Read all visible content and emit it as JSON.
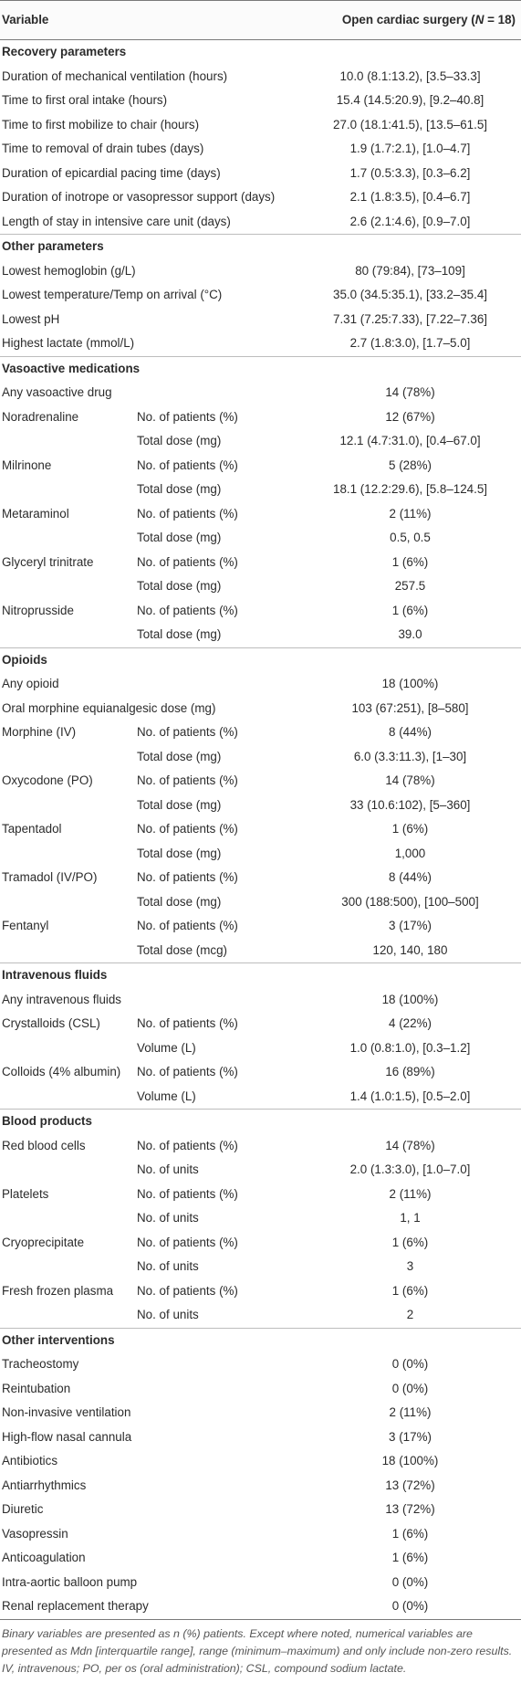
{
  "header": {
    "col_variable": "Variable",
    "col_group": "Open cardiac surgery (N = 18)"
  },
  "sections": [
    {
      "title": "Recovery parameters",
      "rows": [
        {
          "var": "Duration of mechanical ventilation (hours)",
          "sub": "",
          "val": "10.0 (8.1:13.2), [3.5–33.3]"
        },
        {
          "var": "Time to first oral intake (hours)",
          "sub": "",
          "val": "15.4 (14.5:20.9), [9.2–40.8]"
        },
        {
          "var": "Time to first mobilize to chair (hours)",
          "sub": "",
          "val": "27.0 (18.1:41.5), [13.5–61.5]"
        },
        {
          "var": "Time to removal of drain tubes (days)",
          "sub": "",
          "val": "1.9 (1.7:2.1), [1.0–4.7]"
        },
        {
          "var": "Duration of epicardial pacing time (days)",
          "sub": "",
          "val": "1.7 (0.5:3.3), [0.3–6.2]"
        },
        {
          "var": "Duration of inotrope or vasopressor support (days)",
          "sub": "",
          "val": "2.1 (1.8:3.5), [0.4–6.7]"
        },
        {
          "var": "Length of stay in intensive care unit (days)",
          "sub": "",
          "val": "2.6 (2.1:4.6), [0.9–7.0]"
        }
      ]
    },
    {
      "title": "Other parameters",
      "rows": [
        {
          "var": "Lowest hemoglobin (g/L)",
          "sub": "",
          "val": "80 (79:84), [73–109]"
        },
        {
          "var": "Lowest temperature/Temp on arrival (°C)",
          "sub": "",
          "val": "35.0 (34.5:35.1), [33.2–35.4]"
        },
        {
          "var": "Lowest pH",
          "sub": "",
          "val": "7.31 (7.25:7.33), [7.22–7.36]"
        },
        {
          "var": "Highest lactate (mmol/L)",
          "sub": "",
          "val": "2.7 (1.8:3.0), [1.7–5.0]"
        }
      ]
    },
    {
      "title": "Vasoactive medications",
      "rows": [
        {
          "var": "Any vasoactive drug",
          "sub": "",
          "val": "14 (78%)"
        },
        {
          "var": "Noradrenaline",
          "sub": "No. of patients (%)",
          "val": "12 (67%)"
        },
        {
          "var": "",
          "sub": "Total dose (mg)",
          "val": "12.1 (4.7:31.0), [0.4–67.0]"
        },
        {
          "var": "Milrinone",
          "sub": "No. of patients (%)",
          "val": "5 (28%)"
        },
        {
          "var": "",
          "sub": "Total dose (mg)",
          "val": "18.1 (12.2:29.6), [5.8–124.5]"
        },
        {
          "var": "Metaraminol",
          "sub": "No. of patients (%)",
          "val": "2 (11%)"
        },
        {
          "var": "",
          "sub": "Total dose (mg)",
          "val": "0.5, 0.5"
        },
        {
          "var": "Glyceryl trinitrate",
          "sub": "No. of patients (%)",
          "val": "1 (6%)"
        },
        {
          "var": "",
          "sub": "Total dose (mg)",
          "val": "257.5"
        },
        {
          "var": "Nitroprusside",
          "sub": "No. of patients (%)",
          "val": "1 (6%)"
        },
        {
          "var": "",
          "sub": "Total dose (mg)",
          "val": "39.0"
        }
      ]
    },
    {
      "title": "Opioids",
      "rows": [
        {
          "var": "Any opioid",
          "sub": "",
          "val": "18 (100%)"
        },
        {
          "var": "Oral morphine equianalgesic dose (mg)",
          "sub": "",
          "val": "103 (67:251), [8–580]"
        },
        {
          "var": "Morphine (IV)",
          "sub": "No. of patients (%)",
          "val": "8 (44%)"
        },
        {
          "var": "",
          "sub": "Total dose (mg)",
          "val": "6.0 (3.3:11.3), [1–30]"
        },
        {
          "var": "Oxycodone (PO)",
          "sub": "No. of patients (%)",
          "val": "14 (78%)"
        },
        {
          "var": "",
          "sub": "Total dose (mg)",
          "val": "33 (10.6:102), [5–360]"
        },
        {
          "var": "Tapentadol",
          "sub": "No. of patients (%)",
          "val": "1 (6%)"
        },
        {
          "var": "",
          "sub": "Total dose (mg)",
          "val": "1,000"
        },
        {
          "var": "Tramadol (IV/PO)",
          "sub": "No. of patients (%)",
          "val": "8 (44%)"
        },
        {
          "var": "",
          "sub": "Total dose (mg)",
          "val": "300 (188:500), [100–500]"
        },
        {
          "var": "Fentanyl",
          "sub": "No. of patients (%)",
          "val": "3 (17%)"
        },
        {
          "var": "",
          "sub": "Total dose (mcg)",
          "val": "120, 140, 180"
        }
      ]
    },
    {
      "title": "Intravenous fluids",
      "rows": [
        {
          "var": "Any intravenous fluids",
          "sub": "",
          "val": "18 (100%)"
        },
        {
          "var": "Crystalloids (CSL)",
          "sub": "No. of patients (%)",
          "val": "4 (22%)"
        },
        {
          "var": "",
          "sub": "Volume (L)",
          "val": "1.0 (0.8:1.0), [0.3–1.2]"
        },
        {
          "var": "Colloids (4% albumin)",
          "sub": "No. of patients (%)",
          "val": "16 (89%)"
        },
        {
          "var": "",
          "sub": "Volume (L)",
          "val": "1.4 (1.0:1.5), [0.5–2.0]"
        }
      ]
    },
    {
      "title": "Blood products",
      "rows": [
        {
          "var": "Red blood cells",
          "sub": "No. of patients (%)",
          "val": "14 (78%)"
        },
        {
          "var": "",
          "sub": "No. of units",
          "val": "2.0 (1.3:3.0), [1.0–7.0]"
        },
        {
          "var": "Platelets",
          "sub": "No. of patients (%)",
          "val": "2 (11%)"
        },
        {
          "var": "",
          "sub": "No. of units",
          "val": "1, 1"
        },
        {
          "var": "Cryoprecipitate",
          "sub": "No. of patients (%)",
          "val": "1 (6%)"
        },
        {
          "var": "",
          "sub": "No. of units",
          "val": "3"
        },
        {
          "var": "Fresh frozen plasma",
          "sub": "No. of patients (%)",
          "val": "1 (6%)"
        },
        {
          "var": "",
          "sub": "No. of units",
          "val": "2"
        }
      ]
    },
    {
      "title": "Other interventions",
      "rows": [
        {
          "var": "Tracheostomy",
          "sub": "",
          "val": "0 (0%)"
        },
        {
          "var": "Reintubation",
          "sub": "",
          "val": "0 (0%)"
        },
        {
          "var": "Non-invasive ventilation",
          "sub": "",
          "val": "2 (11%)"
        },
        {
          "var": "High-flow nasal cannula",
          "sub": "",
          "val": "3 (17%)"
        },
        {
          "var": "Antibiotics",
          "sub": "",
          "val": "18 (100%)"
        },
        {
          "var": "Antiarrhythmics",
          "sub": "",
          "val": "13 (72%)"
        },
        {
          "var": "Diuretic",
          "sub": "",
          "val": "13 (72%)"
        },
        {
          "var": "Vasopressin",
          "sub": "",
          "val": "1 (6%)"
        },
        {
          "var": "Anticoagulation",
          "sub": "",
          "val": "1 (6%)"
        },
        {
          "var": "Intra-aortic balloon pump",
          "sub": "",
          "val": "0 (0%)"
        },
        {
          "var": "Renal replacement therapy",
          "sub": "",
          "val": "0 (0%)"
        }
      ]
    }
  ],
  "footnote": "Binary variables are presented as n (%) patients. Except where noted, numerical variables are presented as Mdn [interquartile range], range (minimum–maximum) and only include non-zero results. IV, intravenous; PO, per os (oral administration); CSL, compound sodium lactate."
}
